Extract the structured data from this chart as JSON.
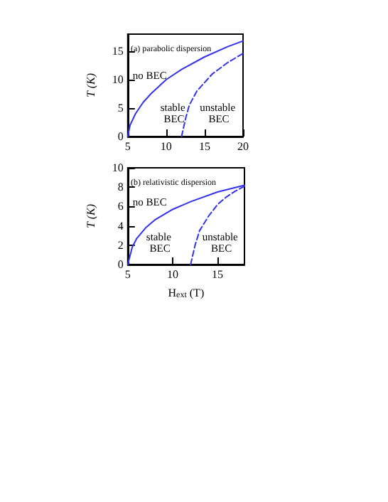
{
  "chart_data": [
    {
      "type": "line",
      "title": "(a) parabolic dispersion",
      "ylabel": "T (K)",
      "xlim": [
        5,
        20
      ],
      "ylim": [
        0,
        18
      ],
      "xticks": [
        5,
        10,
        15,
        20
      ],
      "yticks": [
        0,
        5,
        10,
        15
      ],
      "line_style": "solid",
      "marker": "none",
      "series": [
        {
          "color": "#3333ee",
          "x": [
            5,
            5.3,
            6,
            7,
            8,
            10,
            12,
            15,
            18,
            20
          ],
          "values": [
            0,
            2,
            4,
            6,
            7.5,
            10,
            11.8,
            14,
            15.8,
            16.8
          ]
        },
        {
          "color": "#3333ee",
          "line_style": "dashed",
          "x": [
            12,
            12.5,
            13,
            14,
            16,
            18,
            20
          ],
          "values": [
            0,
            3,
            5.5,
            8,
            11,
            13,
            14.6
          ]
        }
      ],
      "annotations": [
        "no BEC",
        "stable BEC",
        "unstable BEC"
      ]
    },
    {
      "type": "line",
      "title": "(b) relativistic dispersion",
      "ylabel": "T (K)",
      "xlabel": "H$_{ext}$ (T)",
      "xlim": [
        5,
        18
      ],
      "ylim": [
        0,
        10
      ],
      "xticks": [
        5,
        10,
        15
      ],
      "yticks": [
        0,
        2,
        4,
        6,
        8,
        10
      ],
      "line_style": "solid",
      "marker": "none",
      "series": [
        {
          "color": "#3333ee",
          "x": [
            5,
            5.5,
            6,
            7,
            8,
            10,
            12,
            15,
            18
          ],
          "values": [
            0,
            1.8,
            2.7,
            3.8,
            4.6,
            5.7,
            6.5,
            7.5,
            8.2
          ]
        },
        {
          "color": "#3333ee",
          "line_style": "dashed",
          "x": [
            12,
            12.5,
            13,
            14,
            15,
            16,
            17,
            18
          ],
          "values": [
            0,
            2,
            3.5,
            5,
            6.2,
            7,
            7.6,
            8.1
          ]
        }
      ],
      "annotations": [
        "no BEC",
        "stable BEC",
        "unstable BEC"
      ]
    }
  ]
}
